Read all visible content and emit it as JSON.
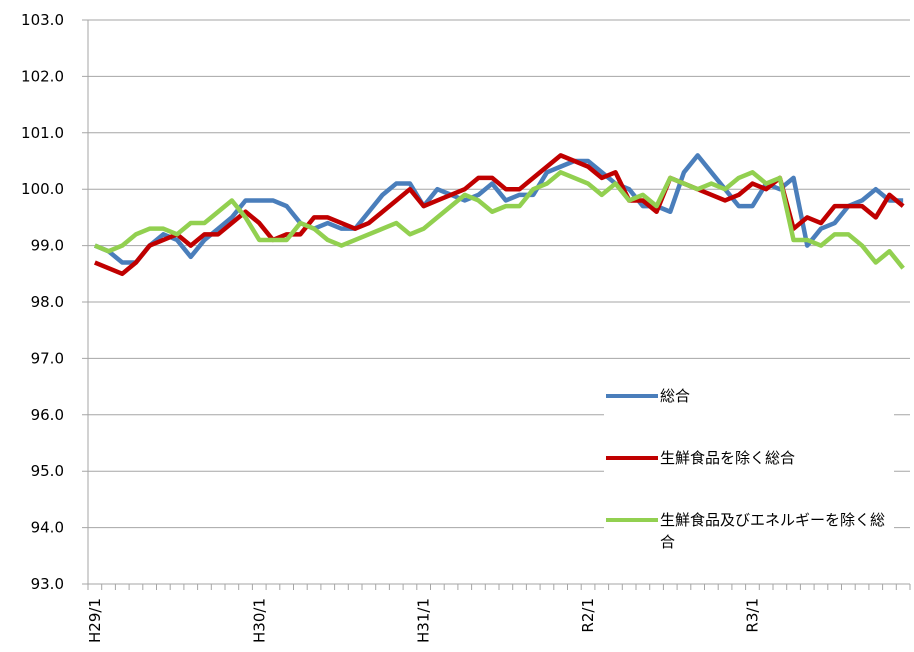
{
  "chart_data": {
    "type": "line",
    "categories": [
      "H29/1",
      null,
      null,
      null,
      null,
      null,
      null,
      null,
      null,
      null,
      null,
      null,
      "H30/1",
      null,
      null,
      null,
      null,
      null,
      null,
      null,
      null,
      null,
      null,
      null,
      "H31/1",
      null,
      null,
      null,
      null,
      null,
      null,
      null,
      null,
      null,
      null,
      null,
      "R2/1",
      null,
      null,
      null,
      null,
      null,
      null,
      null,
      null,
      null,
      null,
      null,
      "R3/1",
      null,
      null,
      null,
      null,
      null,
      null,
      null,
      null,
      null,
      null,
      null
    ],
    "series": [
      {
        "name": "総合",
        "color": "#4a7ebb",
        "values": [
          99.0,
          98.9,
          98.7,
          98.7,
          99.0,
          99.2,
          99.1,
          98.8,
          99.1,
          99.3,
          99.5,
          99.8,
          99.8,
          99.8,
          99.7,
          99.4,
          99.3,
          99.4,
          99.3,
          99.3,
          99.6,
          99.9,
          100.1,
          100.1,
          99.7,
          100.0,
          99.9,
          99.8,
          99.9,
          100.1,
          99.8,
          99.9,
          99.9,
          100.3,
          100.4,
          100.5,
          100.5,
          100.3,
          100.1,
          100.0,
          99.7,
          99.7,
          99.6,
          100.3,
          100.6,
          100.3,
          100.0,
          99.7,
          99.7,
          100.1,
          100.0,
          100.2,
          99.0,
          99.3,
          99.4,
          99.7,
          99.8,
          100.0,
          99.8,
          99.8
        ]
      },
      {
        "name": "生鮮食品を除く総合",
        "color": "#c00000",
        "values": [
          98.7,
          98.6,
          98.5,
          98.7,
          99.0,
          99.1,
          99.2,
          99.0,
          99.2,
          99.2,
          99.4,
          99.6,
          99.4,
          99.1,
          99.2,
          99.2,
          99.5,
          99.5,
          99.4,
          99.3,
          99.4,
          99.6,
          99.8,
          100.0,
          99.7,
          99.8,
          99.9,
          100.0,
          100.2,
          100.2,
          100.0,
          100.0,
          100.2,
          100.4,
          100.6,
          100.5,
          100.4,
          100.2,
          100.3,
          99.8,
          99.8,
          99.6,
          100.2,
          100.1,
          100.0,
          99.9,
          99.8,
          99.9,
          100.1,
          100.0,
          100.2,
          99.3,
          99.5,
          99.4,
          99.7,
          99.7,
          99.7,
          99.5,
          99.9,
          99.7
        ]
      },
      {
        "name": "生鮮食品及びエネルギーを除く総合",
        "color": "#92d050",
        "values": [
          99.0,
          98.9,
          99.0,
          99.2,
          99.3,
          99.3,
          99.2,
          99.4,
          99.4,
          99.6,
          99.8,
          99.5,
          99.1,
          99.1,
          99.1,
          99.4,
          99.3,
          99.1,
          99.0,
          99.1,
          99.2,
          99.3,
          99.4,
          99.2,
          99.3,
          99.5,
          99.7,
          99.9,
          99.8,
          99.6,
          99.7,
          99.7,
          100.0,
          100.1,
          100.3,
          100.2,
          100.1,
          99.9,
          100.1,
          99.8,
          99.9,
          99.7,
          100.2,
          100.1,
          100.0,
          100.1,
          100.0,
          100.2,
          100.3,
          100.1,
          100.2,
          99.1,
          99.1,
          99.0,
          99.2,
          99.2,
          99.0,
          98.7,
          98.9,
          98.6
        ]
      }
    ],
    "ylim": [
      93,
      103
    ],
    "yticks": [
      {
        "value": 93,
        "label": "93.0"
      },
      {
        "value": 94,
        "label": "94.0"
      },
      {
        "value": 95,
        "label": "95.0"
      },
      {
        "value": 96,
        "label": "96.0"
      },
      {
        "value": 97,
        "label": "97.0"
      },
      {
        "value": 98,
        "label": "98.0"
      },
      {
        "value": 99,
        "label": "99.0"
      },
      {
        "value": 100,
        "label": "100.0"
      },
      {
        "value": 101,
        "label": "101.0"
      },
      {
        "value": 102,
        "label": "102.0"
      },
      {
        "value": 103,
        "label": "103.0"
      }
    ],
    "grid": true
  }
}
